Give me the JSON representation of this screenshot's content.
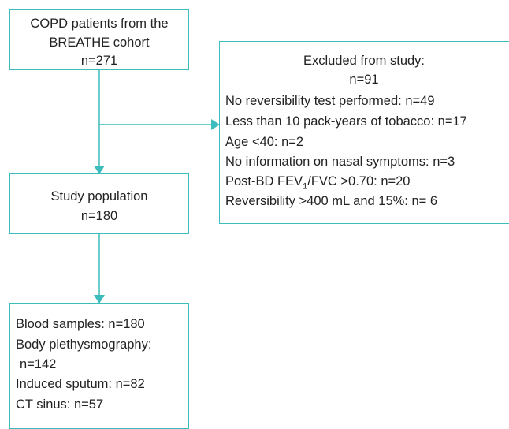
{
  "nodes": [
    {
      "lines": [
        "COPD patients from the",
        "BREATHE cohort",
        "n=271"
      ]
    },
    {
      "lines": [
        "Excluded from study:",
        "n=91",
        "No reversibility test performed: n=49",
        "Less than 10 pack-years of tobacco: n=17",
        "Age <40: n=2",
        "No information on nasal symptoms: n=3",
        {
          "text": "Post-BD FEV",
          "sub": "1",
          "rest": "/FVC >0.70: n=20"
        },
        "Reversibility >400 mL and 15%: n= 6"
      ]
    },
    {
      "lines": [
        "Study population",
        "n=180"
      ]
    },
    {
      "lines": [
        "Blood samples: n=180",
        "Body plethysmography:",
        "n=142",
        "Induced sputum: n=82",
        "CT sinus: n=57"
      ]
    }
  ]
}
